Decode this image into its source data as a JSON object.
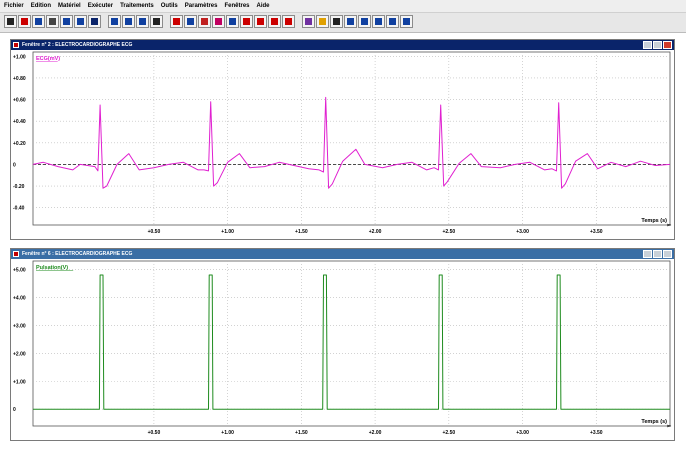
{
  "menu": [
    "Fichier",
    "Edition",
    "Matériel",
    "Exécuter",
    "Traitements",
    "Outils",
    "Paramètres",
    "Fenêtres",
    "Aide"
  ],
  "toolbar": {
    "icons": [
      "new-icon",
      "open-icon",
      "save-icon",
      "print-icon",
      "copy-icon",
      "paste-icon",
      "monitor-icon",
      "table-icon",
      "pen-icon",
      "text-icon",
      "cursor-icon",
      "color-icon",
      "zoom-icon",
      "zoom-out-icon",
      "line-tool-icon",
      "crosshair-icon",
      "move-icon",
      "target-icon",
      "red-mark-icon",
      "stop-icon",
      "gradient-icon",
      "brush-icon",
      "eraser-icon",
      "grid-icon",
      "frame-icon",
      "split-icon",
      "export-icon",
      "arrow-icon"
    ]
  },
  "colors": {
    "ecg": "#e020d0",
    "pulse": "#1e8b1e",
    "title_active": "#0a246a",
    "title_inactive": "#3a6ea5"
  },
  "window1": {
    "title": "Fenêtre n° 2 : ELECTROCARDIOGRAPHE ECG",
    "series_label": "ECG(mV)",
    "xlabel": "Temps (s)"
  },
  "window2": {
    "title": "Fenêtre n° 6 : ELECTROCARDIOGRAPHE ECG",
    "series_label": "Pulsation(V)",
    "xlabel": "Temps (s)"
  },
  "chart_data": [
    {
      "type": "line",
      "title": "",
      "ylabel": "ECG(mV)",
      "xlabel": "Temps (s)",
      "xlim": [
        -0.32,
        4.0
      ],
      "ylim": [
        -0.56,
        1.04
      ],
      "x_ticks": [
        0.5,
        1.0,
        1.5,
        2.0,
        2.5,
        3.0,
        3.5
      ],
      "x_tick_labels": [
        "+0.50",
        "+1.00",
        "+1.50",
        "+2.00",
        "+2.50",
        "+3.00",
        "+3.50"
      ],
      "y_ticks": [
        1.0,
        0.8,
        0.6,
        0.4,
        0.2,
        0,
        -0.2,
        -0.4
      ],
      "y_tick_labels": [
        "+1.00",
        "+0.80",
        "+0.60",
        "+0.40",
        "+0.20",
        "0",
        "-0.20",
        "-0.40"
      ],
      "grid": true,
      "reference_line": 0,
      "series": [
        {
          "color": "#e020d0",
          "x": [
            -0.32,
            -0.25,
            -0.15,
            -0.05,
            0.0,
            0.1,
            0.12,
            0.135,
            0.155,
            0.18,
            0.25,
            0.33,
            0.4,
            0.5,
            0.6,
            0.7,
            0.8,
            0.84,
            0.87,
            0.885,
            0.905,
            0.93,
            1.0,
            1.08,
            1.15,
            1.25,
            1.35,
            1.45,
            1.55,
            1.62,
            1.65,
            1.665,
            1.685,
            1.71,
            1.78,
            1.87,
            1.93,
            2.05,
            2.15,
            2.25,
            2.35,
            2.4,
            2.43,
            2.445,
            2.465,
            2.49,
            2.57,
            2.65,
            2.72,
            2.85,
            2.95,
            3.05,
            3.15,
            3.2,
            3.23,
            3.245,
            3.265,
            3.29,
            3.36,
            3.44,
            3.51,
            3.6,
            3.7,
            3.8,
            3.9,
            4.0
          ],
          "y": [
            0.0,
            0.02,
            -0.02,
            -0.05,
            0.0,
            -0.02,
            -0.06,
            0.55,
            -0.22,
            -0.2,
            0.0,
            0.1,
            -0.05,
            -0.03,
            0.0,
            0.02,
            -0.05,
            -0.05,
            -0.06,
            0.58,
            -0.2,
            -0.17,
            0.02,
            0.1,
            -0.03,
            -0.02,
            0.02,
            -0.01,
            -0.04,
            -0.05,
            -0.07,
            0.62,
            -0.22,
            -0.18,
            0.03,
            0.14,
            0.0,
            -0.03,
            0.0,
            0.02,
            -0.05,
            -0.03,
            -0.05,
            0.55,
            -0.2,
            -0.16,
            0.01,
            0.1,
            -0.02,
            -0.03,
            0.0,
            0.02,
            -0.05,
            -0.04,
            -0.06,
            0.57,
            -0.22,
            -0.18,
            0.03,
            0.1,
            -0.04,
            0.02,
            -0.02,
            0.03,
            -0.01,
            0.0
          ]
        }
      ]
    },
    {
      "type": "line",
      "title": "",
      "ylabel": "Pulsation(V)",
      "xlabel": "Temps (s)",
      "xlim": [
        -0.32,
        4.0
      ],
      "ylim": [
        -0.6,
        5.3
      ],
      "x_ticks": [
        0.5,
        1.0,
        1.5,
        2.0,
        2.5,
        3.0,
        3.5
      ],
      "x_tick_labels": [
        "+0.50",
        "+1.00",
        "+1.50",
        "+2.00",
        "+2.50",
        "+3.00",
        "+3.50"
      ],
      "y_ticks": [
        5,
        4,
        3,
        2,
        1,
        0
      ],
      "y_tick_labels": [
        "+5.00",
        "+4.00",
        "+3.00",
        "+2.00",
        "+1.00",
        "0"
      ],
      "grid": true,
      "series": [
        {
          "color": "#1e8b1e",
          "x": [
            -0.32,
            0.13,
            0.135,
            0.155,
            0.16,
            0.87,
            0.875,
            0.895,
            0.9,
            1.645,
            1.65,
            1.67,
            1.675,
            2.43,
            2.435,
            2.455,
            2.46,
            3.23,
            3.235,
            3.255,
            3.26,
            4.0
          ],
          "y": [
            0,
            0,
            4.8,
            4.8,
            0,
            0,
            4.8,
            4.8,
            0,
            0,
            4.8,
            4.8,
            0,
            0,
            4.8,
            4.8,
            0,
            0,
            4.8,
            4.8,
            0,
            0
          ]
        }
      ]
    }
  ]
}
